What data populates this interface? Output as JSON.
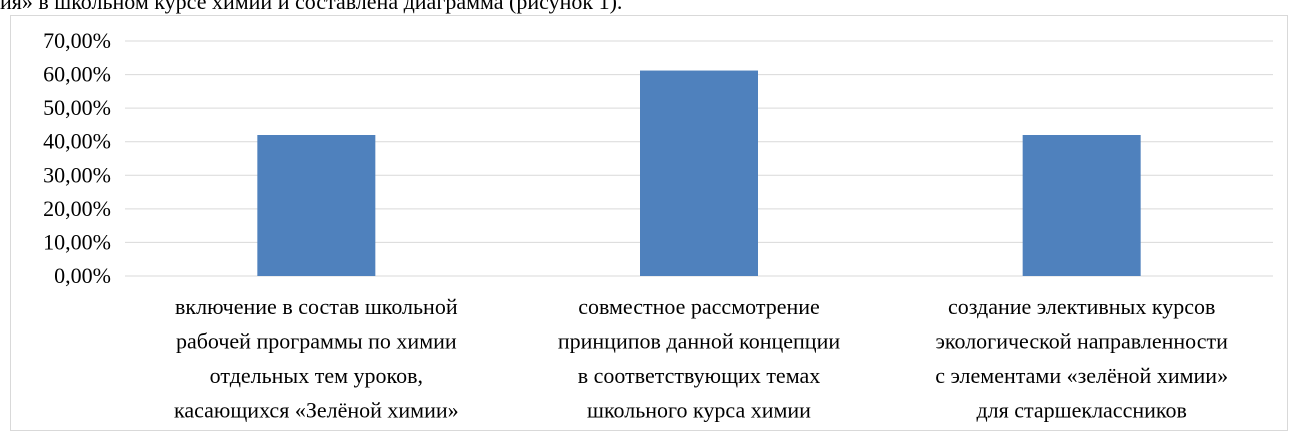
{
  "page": {
    "top_text": "ия» в школьном курсе химии и составлена диаграмма (рисунок 1)."
  },
  "colors": {
    "bar": "#4f81bd",
    "grid": "#d9d9d9",
    "frame": "#d9d9d9"
  },
  "chart_data": {
    "type": "bar",
    "title": "",
    "xlabel": "",
    "ylabel": "",
    "categories": [
      [
        "включение в состав школьной",
        "рабочей программы по химии",
        "отдельных тем уроков,",
        "касающихся «Зелёной химии»"
      ],
      [
        "совместное рассмотрение",
        "принципов данной концепции",
        "в соответствующих темах",
        "школьного курса химии"
      ],
      [
        "создание элективных курсов",
        "экологической направленности",
        "с элементами «зелёной химии»",
        "для старшеклассников"
      ]
    ],
    "values": [
      0.42,
      0.612,
      0.42
    ],
    "ylim": [
      0,
      0.7
    ],
    "yticks": [
      "0,00%",
      "10,00%",
      "20,00%",
      "30,00%",
      "40,00%",
      "50,00%",
      "60,00%",
      "70,00%"
    ],
    "grid": true,
    "legend": "none"
  }
}
